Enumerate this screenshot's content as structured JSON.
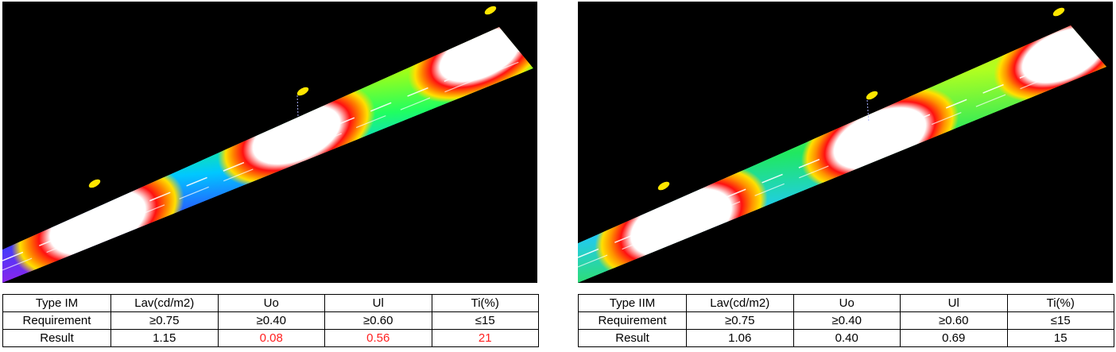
{
  "panels": [
    {
      "id": "left",
      "table": {
        "header": [
          "Type IM",
          "Lav(cd/m2)",
          "Uo",
          "Ul",
          "Ti(%)"
        ],
        "rows": [
          [
            "Requirement",
            "≥0.75",
            "≥0.40",
            "≥0.60",
            "≤15"
          ],
          [
            "Result",
            "1.15",
            "0.08",
            "0.56",
            "21"
          ]
        ],
        "failing_result_columns": [
          2,
          3,
          4
        ]
      }
    },
    {
      "id": "right",
      "table": {
        "header": [
          "Type IIM",
          "Lav(cd/m2)",
          "Uo",
          "Ul",
          "Ti(%)"
        ],
        "rows": [
          [
            "Requirement",
            "≥0.75",
            "≥0.40",
            "≥0.60",
            "≤15"
          ],
          [
            "Result",
            "1.06",
            "0.40",
            "0.69",
            "15"
          ]
        ],
        "failing_result_columns": []
      }
    }
  ],
  "colors": {
    "fail_text": "#ff2020",
    "background": "#000000"
  }
}
